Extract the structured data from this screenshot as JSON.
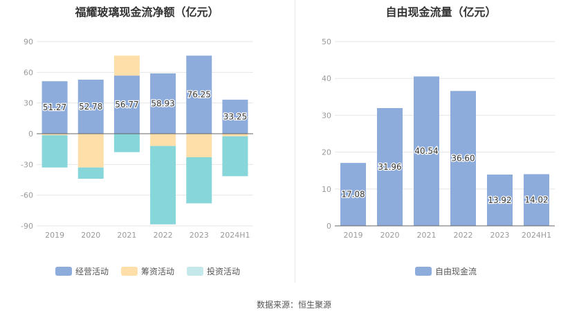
{
  "source": "数据来源：恒生聚源",
  "chart_data": [
    {
      "type": "bar",
      "stacked": true,
      "title": "福耀玻璃现金流净额（亿元）",
      "categories": [
        "2019",
        "2020",
        "2021",
        "2022",
        "2023",
        "2024H1"
      ],
      "ylim": [
        -90,
        90
      ],
      "yticks": [
        90,
        60,
        30,
        0,
        -30,
        -60,
        -90
      ],
      "series": [
        {
          "name": "经营活动",
          "color": "#8eacdb",
          "values": [
            51.27,
            52.78,
            56.77,
            58.93,
            76.25,
            33.25
          ],
          "show_labels": true
        },
        {
          "name": "筹资活动",
          "color": "#fedfaa",
          "values": [
            -1.5,
            -33,
            19.5,
            -12,
            -23,
            -2.5
          ],
          "show_labels": false
        },
        {
          "name": "投资活动",
          "color": "#87d6d9",
          "legend_color": "#c5e8ea",
          "values": [
            -31.5,
            -11,
            -18,
            -76.5,
            -45,
            -39
          ],
          "show_labels": false
        }
      ]
    },
    {
      "type": "bar",
      "title": "自由现金流量（亿元）",
      "categories": [
        "2019",
        "2020",
        "2021",
        "2022",
        "2023",
        "2024H1"
      ],
      "ylim": [
        0,
        50
      ],
      "yticks": [
        50,
        40,
        30,
        20,
        10,
        0
      ],
      "series": [
        {
          "name": "自由现金流",
          "color": "#8eacdb",
          "values": [
            17.08,
            31.96,
            40.54,
            36.6,
            13.92,
            14.02
          ],
          "show_labels": true
        }
      ]
    }
  ]
}
